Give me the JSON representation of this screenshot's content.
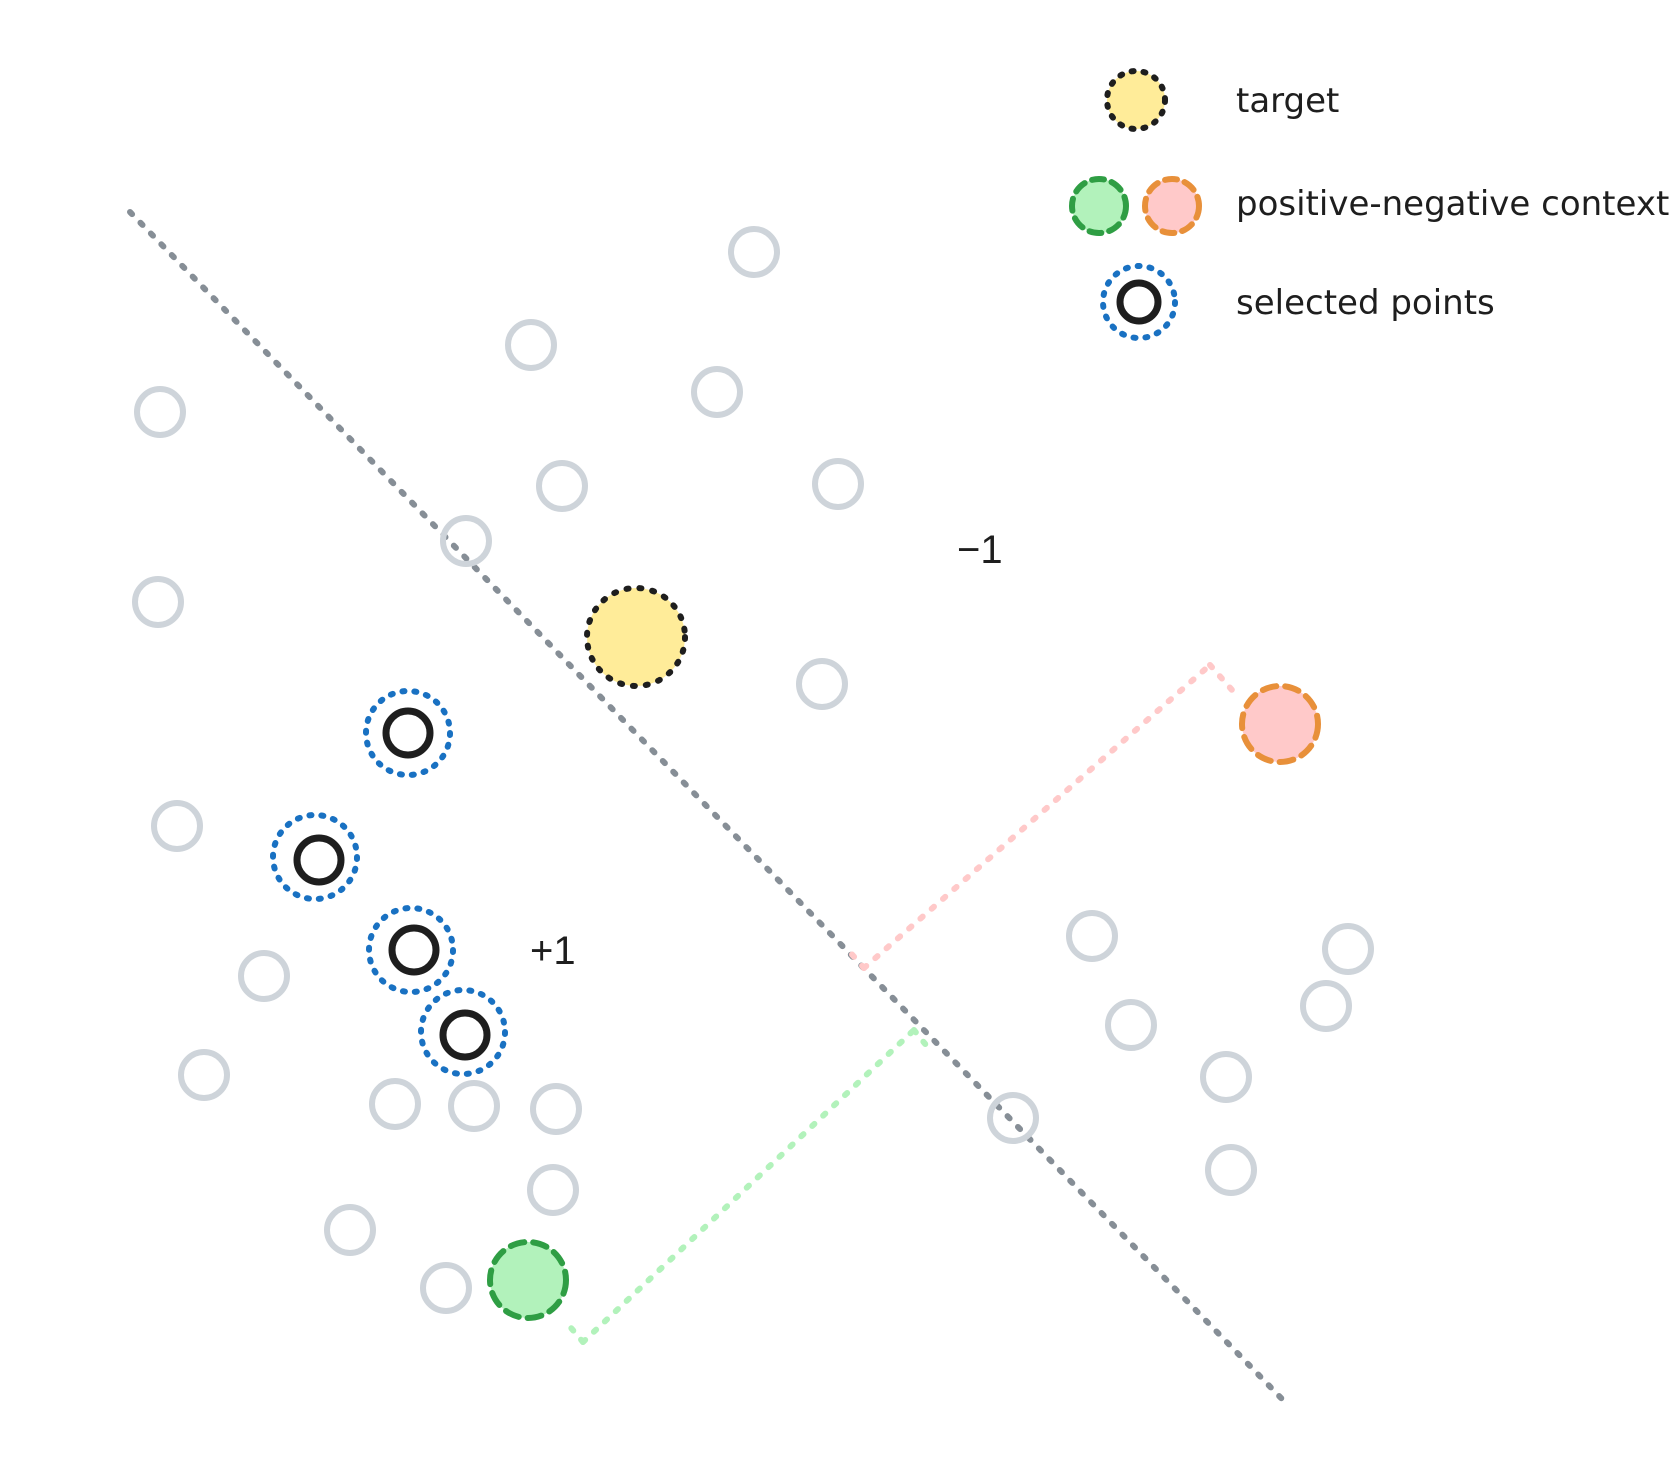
{
  "regions": {
    "negative": "−1",
    "positive": "+1"
  },
  "legend": {
    "target": "target",
    "context": "positive-negative context",
    "selected": "selected points"
  },
  "colors": {
    "background": "#ffffff",
    "point_gray": "#ced4da",
    "boundary": "#868e96",
    "target_fill": "#ffec99",
    "target_stroke": "#1e1e1e",
    "positive_fill": "#b2f2bb",
    "positive_stroke": "#2f9e44",
    "negative_fill": "#ffc9c9",
    "negative_stroke": "#e8903a",
    "selected_ring": "#1971c2",
    "selected_core": "#1e1e1e",
    "projection_positive": "#b2f2bb",
    "projection_negative": "#ffc9c9"
  },
  "icons": {
    "target": "dotted-yellow-circle-icon",
    "positive_context": "dashed-green-circle-icon",
    "negative_context": "dashed-pink-circle-icon",
    "selected": "blue-dotted-ring-icon"
  }
}
